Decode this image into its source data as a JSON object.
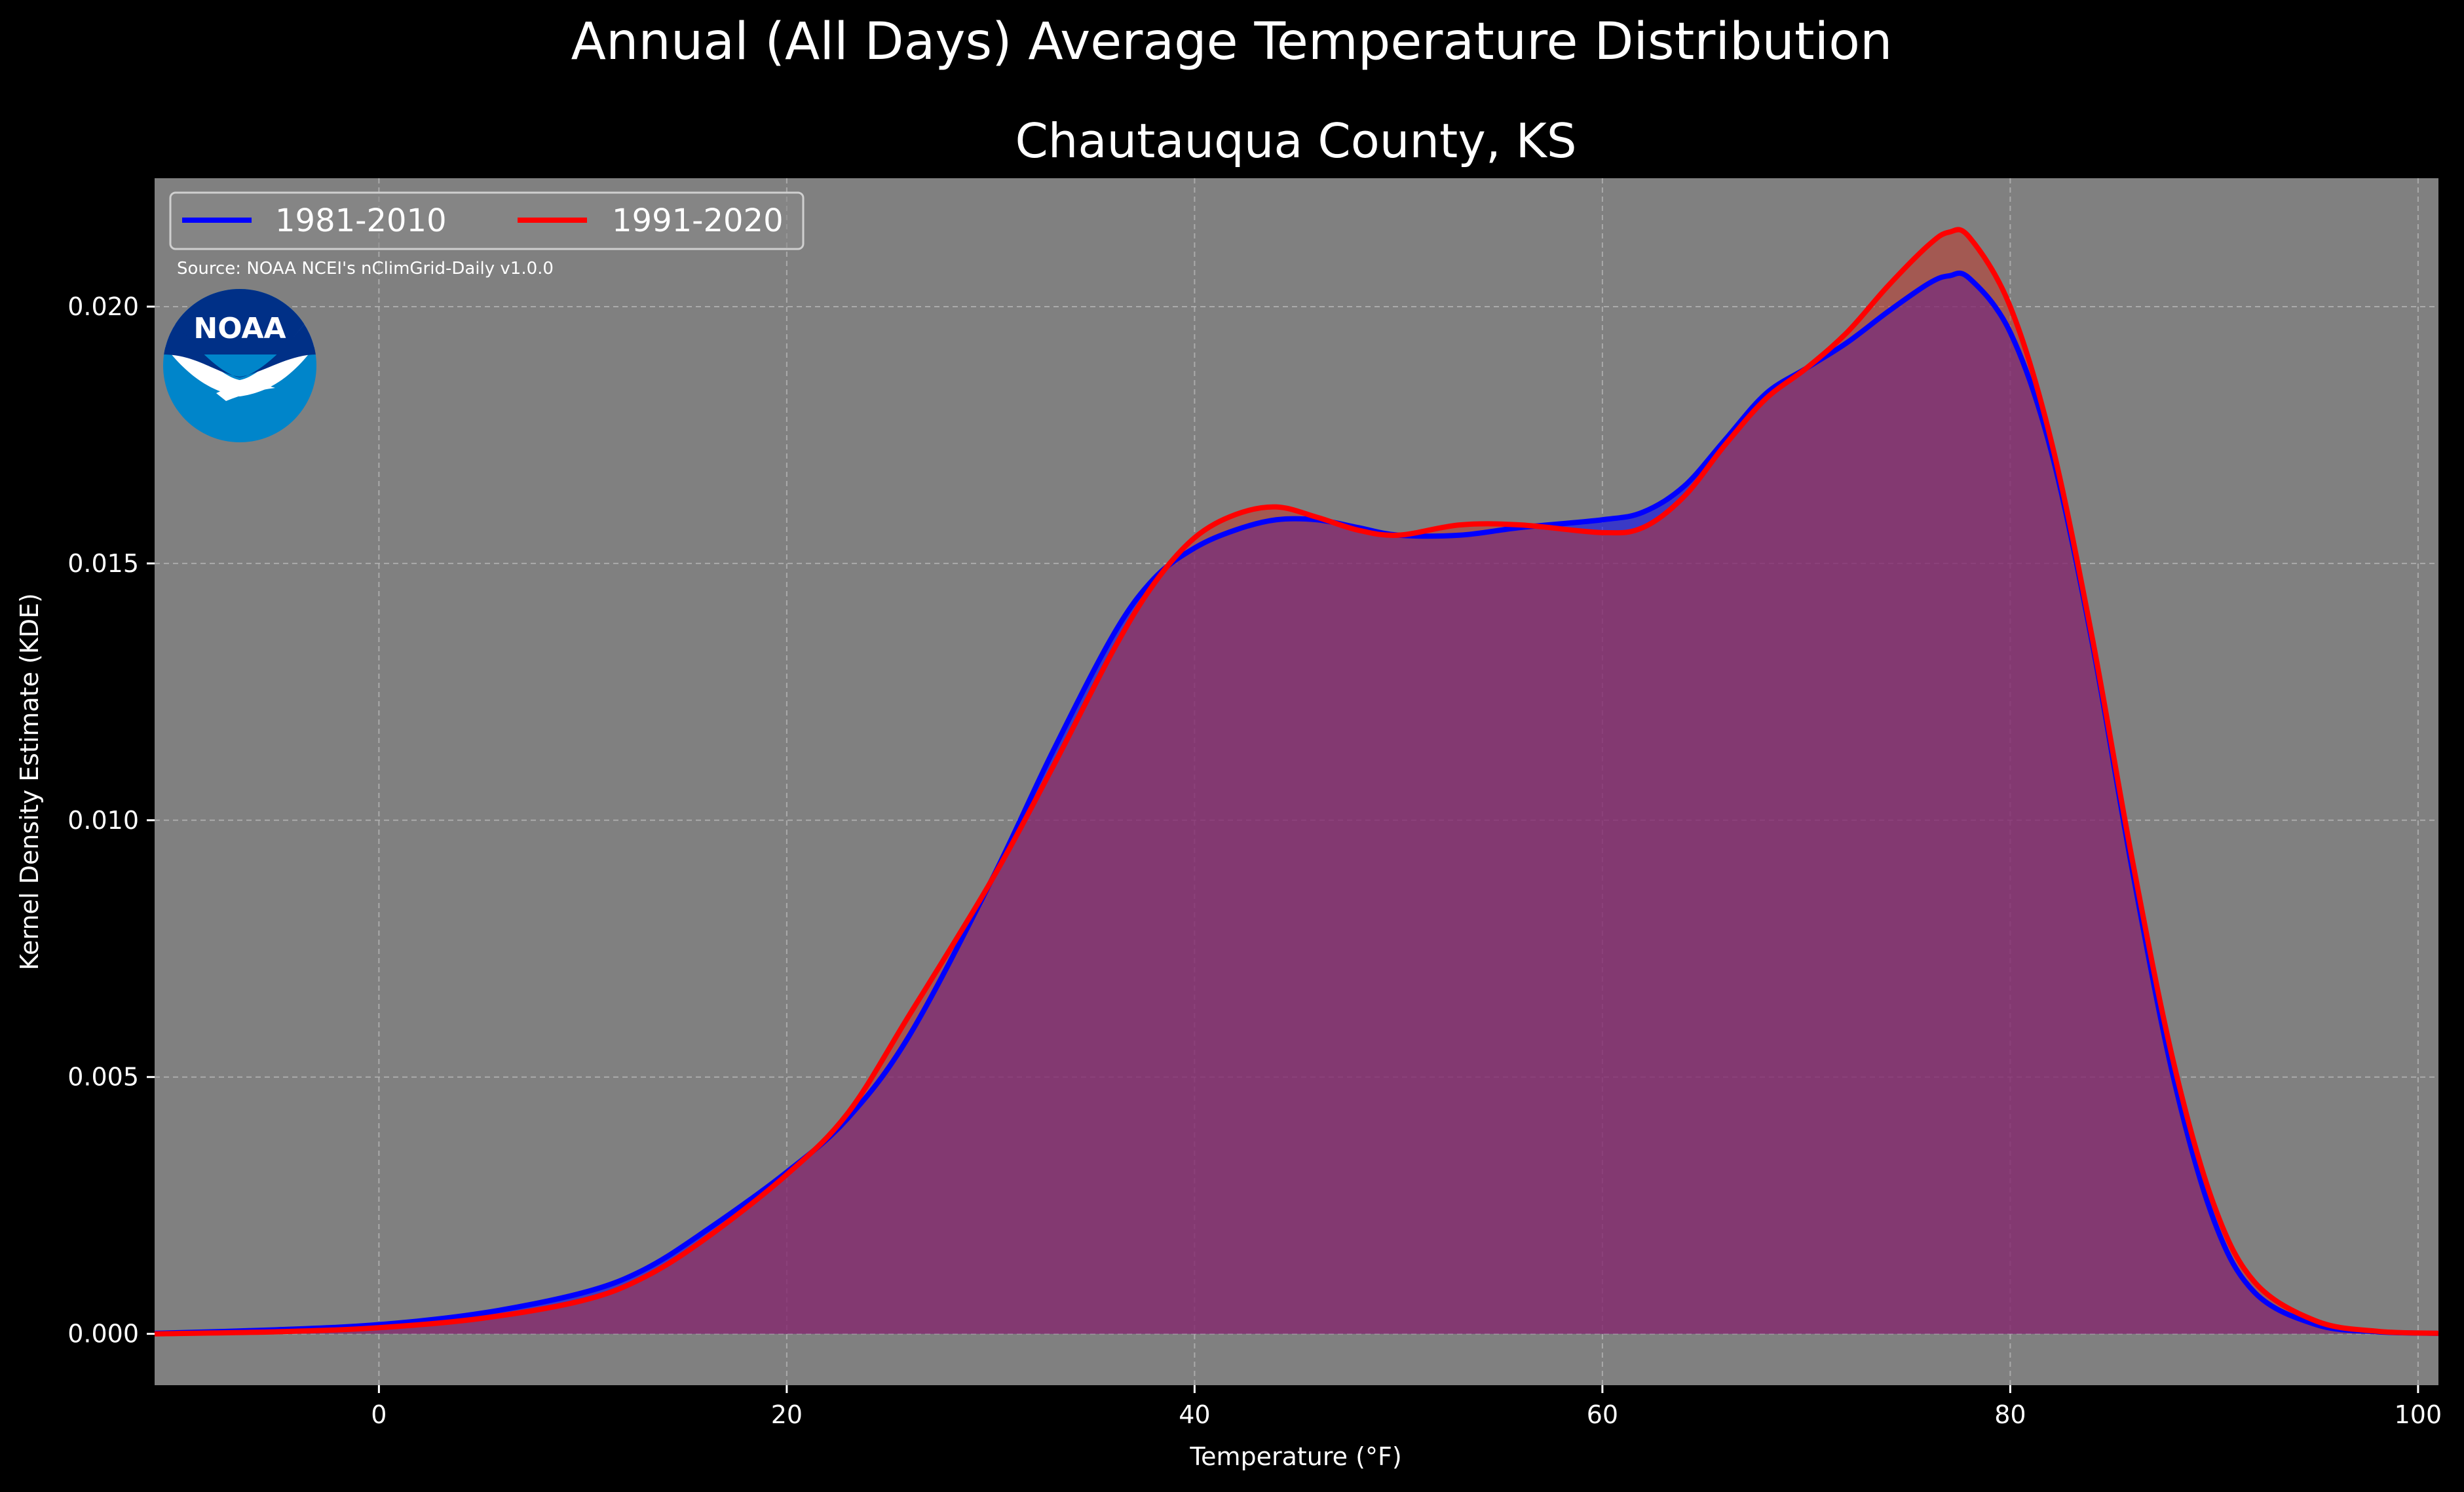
{
  "chart_data": {
    "type": "area",
    "suptitle": "Annual (All Days) Average Temperature Distribution",
    "title": "Chautauqua County, KS",
    "xlabel": "Temperature (°F)",
    "ylabel": "Kernel Density Estimate (KDE)",
    "xlim": [
      -11,
      101
    ],
    "ylim": [
      -0.001,
      0.0225
    ],
    "xticks": [
      0,
      20,
      40,
      60,
      80,
      100
    ],
    "yticks": [
      0.0,
      0.005,
      0.01,
      0.015,
      0.02
    ],
    "ytick_labels": [
      "0.000",
      "0.005",
      "0.010",
      "0.015",
      "0.020"
    ],
    "grid": true,
    "legend_placement": "top-left",
    "source_note": "Source: NOAA NCEI's nClimGrid-Daily v1.0.0",
    "logo_text": "NOAA",
    "background_color": "#808080",
    "series": [
      {
        "name": "1981-2010",
        "line_color": "#0000ff",
        "fill_color": "#0000ff",
        "x": [
          -11,
          -5,
          0,
          5,
          10,
          13,
          16,
          20,
          23,
          26,
          30,
          33,
          36,
          38,
          40,
          42,
          44,
          46,
          48,
          50,
          53,
          56,
          60,
          62,
          64,
          66,
          68,
          70,
          72,
          74,
          76,
          77,
          78,
          80,
          82,
          84,
          86,
          88,
          90,
          92,
          95,
          98,
          101
        ],
        "y": [
          1e-05,
          8e-05,
          0.00018,
          0.0004,
          0.0008,
          0.00125,
          0.002,
          0.00315,
          0.0042,
          0.0058,
          0.0088,
          0.0113,
          0.0136,
          0.0147,
          0.0153,
          0.01565,
          0.01585,
          0.01585,
          0.0157,
          0.01555,
          0.01555,
          0.0157,
          0.01585,
          0.016,
          0.0165,
          0.0174,
          0.0183,
          0.0188,
          0.0193,
          0.0199,
          0.02045,
          0.0206,
          0.02055,
          0.0195,
          0.0172,
          0.0135,
          0.009,
          0.005,
          0.0022,
          0.0008,
          0.00018,
          4e-05,
          1e-05
        ]
      },
      {
        "name": "1991-2020",
        "line_color": "#ff0000",
        "fill_color": "#c0392b",
        "x": [
          -11,
          -5,
          0,
          5,
          10,
          13,
          16,
          20,
          23,
          26,
          30,
          33,
          36,
          38,
          40,
          42,
          44,
          46,
          48,
          50,
          53,
          56,
          60,
          62,
          64,
          66,
          68,
          70,
          72,
          74,
          76,
          77,
          78,
          80,
          82,
          84,
          86,
          88,
          90,
          92,
          95,
          98,
          101
        ],
        "y": [
          0.0,
          4e-05,
          0.00012,
          0.0003,
          0.00065,
          0.0011,
          0.00185,
          0.0031,
          0.0043,
          0.0062,
          0.0088,
          0.011,
          0.0133,
          0.0146,
          0.0155,
          0.01595,
          0.0161,
          0.0159,
          0.01565,
          0.01555,
          0.01575,
          0.01575,
          0.0156,
          0.0157,
          0.0163,
          0.0173,
          0.0182,
          0.0188,
          0.0195,
          0.0204,
          0.0212,
          0.02145,
          0.02135,
          0.02,
          0.0174,
          0.0136,
          0.0092,
          0.0053,
          0.0025,
          0.001,
          0.00025,
          5e-05,
          1e-05
        ]
      }
    ]
  }
}
